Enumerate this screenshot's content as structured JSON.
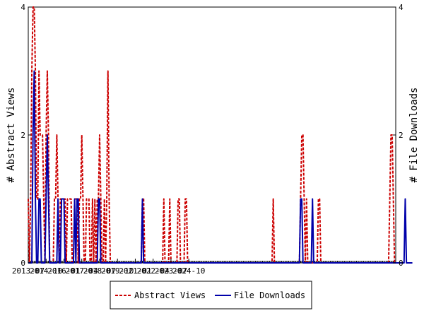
{
  "chart_data": {
    "type": "line",
    "ylabel_left": "# Abstract Views",
    "ylabel_right": "# File Downloads",
    "ylim": [
      0,
      4
    ],
    "y_ticks": [
      "0",
      "2",
      "4"
    ],
    "x_tick_labels": [
      "2013-07",
      "2014-10",
      "2016-01",
      "2017-04",
      "2018-07",
      "2019-10",
      "2021-01",
      "2022-04",
      "2023-07",
      "2024-10"
    ],
    "x_range_months": [
      "2013-07",
      "2025-06"
    ],
    "series": [
      {
        "name": "Abstract Views",
        "color": "#cc0000",
        "style": "dashed",
        "values": [
          1,
          0,
          1,
          3,
          4,
          4,
          3,
          1,
          1,
          3,
          2,
          2,
          2,
          1,
          0,
          2,
          3,
          2,
          0,
          0,
          0,
          0,
          1,
          1,
          2,
          1,
          0,
          1,
          1,
          1,
          1,
          1,
          0,
          1,
          1,
          1,
          1,
          0,
          0,
          1,
          1,
          1,
          0,
          1,
          1,
          2,
          1,
          0,
          0,
          1,
          1,
          1,
          0,
          0,
          1,
          0,
          1,
          0,
          1,
          1,
          2,
          1,
          0,
          0,
          1,
          0,
          1,
          3,
          1,
          0,
          0,
          0,
          0,
          0,
          0,
          0,
          0,
          0,
          0,
          0,
          0,
          0,
          0,
          0,
          0,
          0,
          0,
          0,
          0,
          0,
          0,
          0,
          0,
          0,
          0,
          0,
          1,
          1,
          0,
          0,
          0,
          0,
          0,
          0,
          0,
          0,
          0,
          0,
          0,
          0,
          0,
          0,
          0,
          0,
          1,
          0,
          0,
          0,
          0,
          1,
          0,
          0,
          0,
          0,
          0,
          0,
          1,
          1,
          0,
          0,
          0,
          0,
          1,
          1,
          0,
          0,
          0,
          0,
          0,
          0,
          0,
          0,
          0,
          0,
          0,
          0,
          0,
          0,
          0,
          0,
          0,
          0,
          0,
          0,
          0,
          0,
          0,
          0,
          0,
          0,
          0,
          0,
          0,
          0,
          0,
          0,
          0,
          0,
          0,
          0,
          0,
          0,
          0,
          0,
          0,
          0,
          0,
          0,
          0,
          0,
          0,
          0,
          0,
          0,
          0,
          0,
          0,
          0,
          0,
          0,
          0,
          0,
          0,
          0,
          0,
          0,
          0,
          0,
          0,
          0,
          0,
          0,
          0,
          0,
          0,
          0,
          1,
          0,
          0,
          0,
          0,
          0,
          0,
          0,
          0,
          0,
          0,
          0,
          0,
          0,
          0,
          0,
          0,
          0,
          0,
          0,
          0,
          0,
          0,
          1,
          2,
          2,
          1,
          0,
          1,
          0,
          0,
          0,
          0,
          0,
          0,
          0,
          0,
          0,
          1,
          1,
          0,
          0,
          0,
          0,
          0,
          0,
          0,
          0,
          0,
          0,
          0,
          0,
          0,
          0,
          0,
          0,
          0,
          0,
          0,
          0,
          0,
          0,
          0,
          0,
          0,
          0,
          0,
          0,
          0,
          0,
          0,
          0,
          0,
          0,
          0,
          0,
          0,
          0,
          0,
          0,
          0,
          0,
          0,
          0,
          0,
          0,
          0,
          0,
          0,
          0,
          0,
          0,
          0,
          0,
          0,
          0,
          0,
          0,
          1,
          2,
          2,
          1,
          0,
          0
        ]
      },
      {
        "name": "File Downloads",
        "color": "#0000aa",
        "style": "solid",
        "values": [
          0,
          0,
          0,
          0,
          2,
          3,
          1,
          0,
          0,
          1,
          1,
          0,
          0,
          0,
          0,
          1,
          2,
          1,
          0,
          0,
          0,
          0,
          0,
          0,
          0,
          1,
          0,
          0,
          1,
          1,
          1,
          0,
          0,
          0,
          0,
          0,
          0,
          0,
          0,
          1,
          0,
          1,
          1,
          0,
          0,
          0,
          0,
          0,
          0,
          0,
          0,
          0,
          0,
          0,
          0,
          0,
          0,
          0,
          0,
          1,
          1,
          0,
          0,
          0,
          0,
          0,
          0,
          0,
          0,
          0,
          0,
          0,
          0,
          0,
          0,
          0,
          0,
          0,
          0,
          0,
          0,
          0,
          0,
          0,
          0,
          0,
          0,
          0,
          0,
          0,
          0,
          0,
          0,
          0,
          0,
          0,
          1,
          0,
          0,
          0,
          0,
          0,
          0,
          0,
          0,
          0,
          0,
          0,
          0,
          0,
          0,
          0,
          0,
          0,
          0,
          0,
          0,
          0,
          0,
          0,
          0,
          0,
          0,
          0,
          0,
          0,
          0,
          0,
          0,
          0,
          0,
          0,
          0,
          0,
          0,
          0,
          0,
          0,
          0,
          0,
          0,
          0,
          0,
          0,
          0,
          0,
          0,
          0,
          0,
          0,
          0,
          0,
          0,
          0,
          0,
          0,
          0,
          0,
          0,
          0,
          0,
          0,
          0,
          0,
          0,
          0,
          0,
          0,
          0,
          0,
          0,
          0,
          0,
          0,
          0,
          0,
          0,
          0,
          0,
          0,
          0,
          0,
          0,
          0,
          0,
          0,
          0,
          0,
          0,
          0,
          0,
          0,
          0,
          0,
          0,
          0,
          0,
          0,
          0,
          0,
          0,
          0,
          0,
          0,
          0,
          0,
          0,
          0,
          0,
          0,
          0,
          0,
          0,
          0,
          0,
          0,
          0,
          0,
          0,
          0,
          0,
          0,
          0,
          0,
          0,
          0,
          0,
          0,
          0,
          1,
          1,
          0,
          0,
          0,
          0,
          0,
          0,
          0,
          0,
          1,
          0,
          0,
          0,
          0,
          0,
          0,
          0,
          0,
          0,
          0,
          0,
          0,
          0,
          0,
          0,
          0,
          0,
          0,
          0,
          0,
          0,
          0,
          0,
          0,
          0,
          0,
          0,
          0,
          0,
          0,
          0,
          0,
          0,
          0,
          0,
          0,
          0,
          0,
          0,
          0,
          0,
          0,
          0,
          0,
          0,
          0,
          0,
          0,
          0,
          0,
          0,
          0,
          0,
          0,
          0,
          0,
          0,
          0,
          0,
          0,
          0,
          0,
          0,
          0,
          0,
          0,
          0,
          0,
          0,
          0,
          0,
          0,
          0,
          0,
          0,
          0,
          0,
          1,
          0,
          0,
          0,
          0,
          0,
          0
        ]
      }
    ],
    "legend": {
      "position": "bottom",
      "entries": [
        "Abstract Views",
        "File Downloads"
      ]
    },
    "grid": false
  }
}
